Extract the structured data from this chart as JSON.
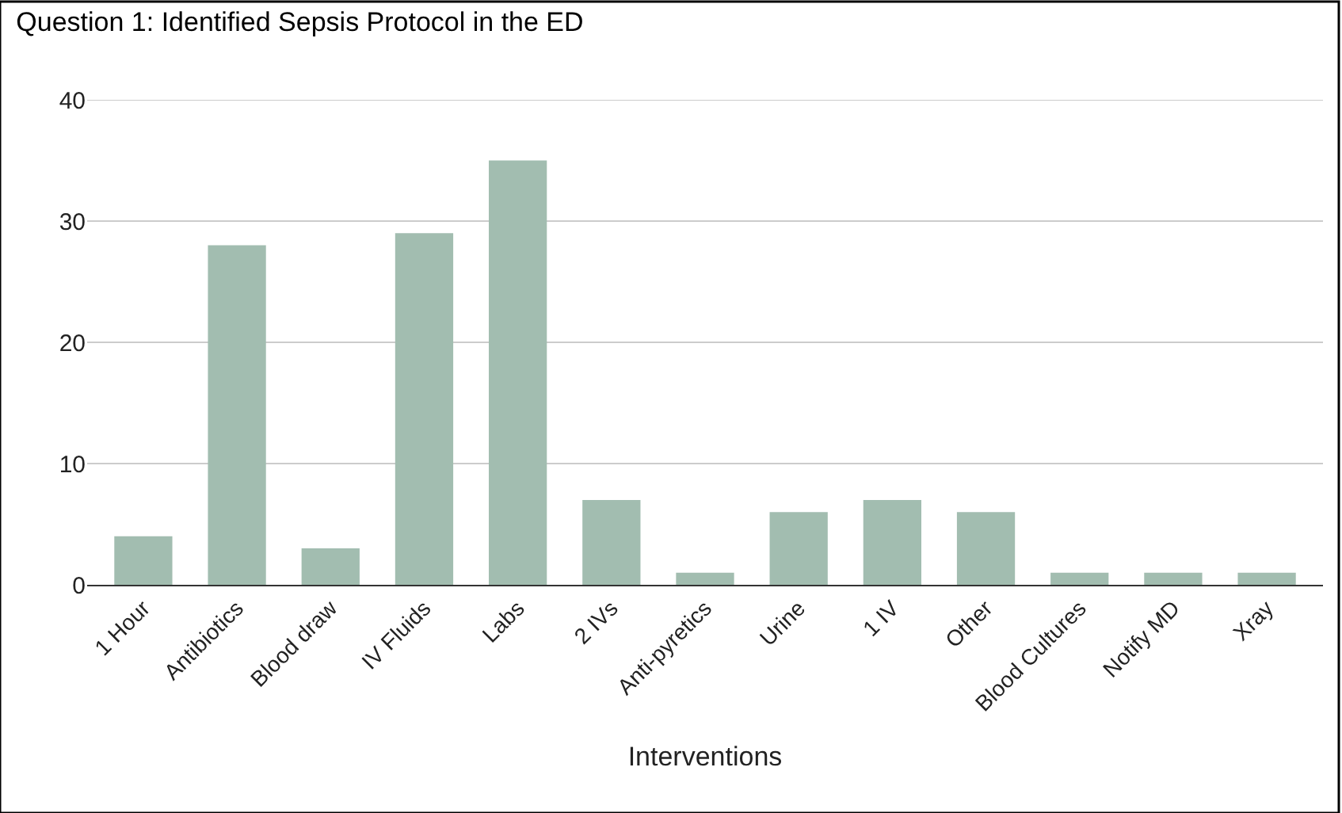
{
  "chart_data": {
    "type": "bar",
    "title": "Question 1: Identified Sepsis Protocol in the ED",
    "xlabel": "Interventions",
    "categories": [
      "1 Hour",
      "Antibiotics",
      "Blood draw",
      "IV Fluids",
      "Labs",
      "2 IVs",
      "Anti-pyretics",
      "Urine",
      "1 IV",
      "Other",
      "Blood Cultures",
      "Notify MD",
      "Xray"
    ],
    "values": [
      4,
      28,
      3,
      29,
      35,
      7,
      1,
      6,
      7,
      6,
      1,
      1,
      1
    ],
    "color": "#a2bdb0",
    "ylim": [
      0,
      40
    ],
    "yticks": [
      0,
      10,
      20,
      30,
      40
    ],
    "grid": "y"
  }
}
